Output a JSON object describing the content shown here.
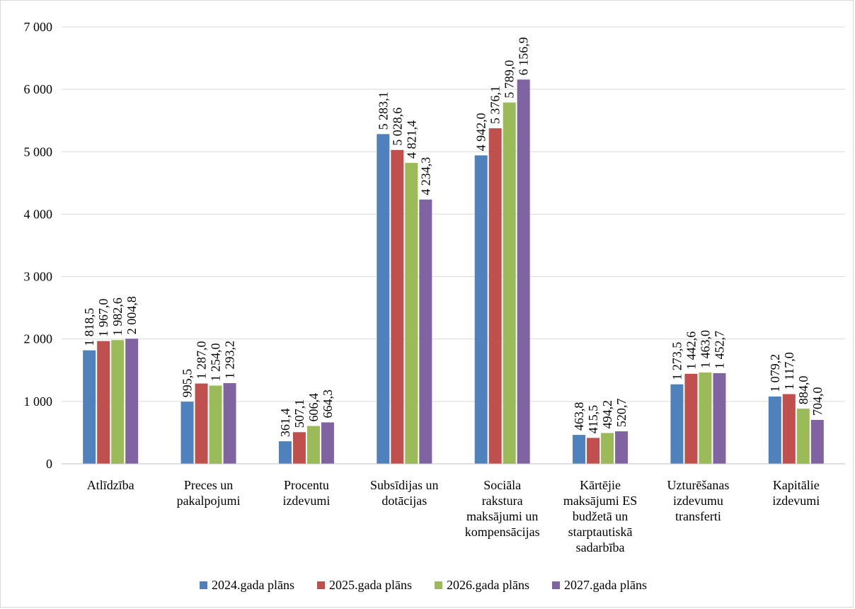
{
  "chart_data": {
    "type": "bar",
    "title": "",
    "xlabel": "",
    "ylabel": "",
    "ylim": [
      0,
      7000
    ],
    "yticks": [
      0,
      1000,
      2000,
      3000,
      4000,
      5000,
      6000,
      7000
    ],
    "ytick_labels": [
      "0",
      "1 000",
      "2 000",
      "3 000",
      "4 000",
      "5 000",
      "6 000",
      "7 000"
    ],
    "grid": true,
    "legend_position": "bottom",
    "categories": [
      [
        "Atlīdzība"
      ],
      [
        "Preces un",
        "pakalpojumi"
      ],
      [
        "Procentu",
        "izdevumi"
      ],
      [
        "Subsīdijas un",
        "dotācijas"
      ],
      [
        "Sociāla",
        "rakstura",
        "maksājumi un",
        "kompensācijas"
      ],
      [
        "Kārtējie",
        "maksājumi ES",
        "budžetā un",
        "starptautiskā",
        "sadarbība"
      ],
      [
        "Uzturēšanas",
        "izdevumu",
        "transferti"
      ],
      [
        "Kapitālie",
        "izdevumi"
      ]
    ],
    "series": [
      {
        "name": "2024.gada plāns",
        "color": "#4F81BD",
        "values": [
          1818.5,
          995.5,
          361.4,
          5283.1,
          4942.0,
          463.8,
          1273.5,
          1079.2
        ],
        "labels": [
          "1 818,5",
          "995,5",
          "361,4",
          "5 283,1",
          "4 942,0",
          "463,8",
          "1 273,5",
          "1 079,2"
        ]
      },
      {
        "name": "2025.gada plāns",
        "color": "#C0504D",
        "values": [
          1967.0,
          1287.0,
          507.1,
          5028.6,
          5376.1,
          415.5,
          1442.6,
          1117.0
        ],
        "labels": [
          "1 967,0",
          "1 287,0",
          "507,1",
          "5 028,6",
          "5 376,1",
          "415,5",
          "1 442,6",
          "1 117,0"
        ]
      },
      {
        "name": "2026.gada plāns",
        "color": "#9BBB59",
        "values": [
          1982.6,
          1254.0,
          606.4,
          4821.4,
          5789.0,
          494.2,
          1463.0,
          884.0
        ],
        "labels": [
          "1 982,6",
          "1 254,0",
          "606,4",
          "4 821,4",
          "5 789,0",
          "494,2",
          "1 463,0",
          "884,0"
        ]
      },
      {
        "name": "2027.gada plāns",
        "color": "#8064A2",
        "values": [
          2004.8,
          1293.2,
          664.3,
          4234.3,
          6156.9,
          520.7,
          1452.7,
          704.0
        ],
        "labels": [
          "2 004,8",
          "1 293,2",
          "664,3",
          "4 234,3",
          "6 156,9",
          "520,7",
          "1 452,7",
          "704,0"
        ]
      }
    ],
    "colors": {
      "grid": "#d9d9d9",
      "axis": "#bfbfbf",
      "border": "#d9d9d9"
    }
  }
}
